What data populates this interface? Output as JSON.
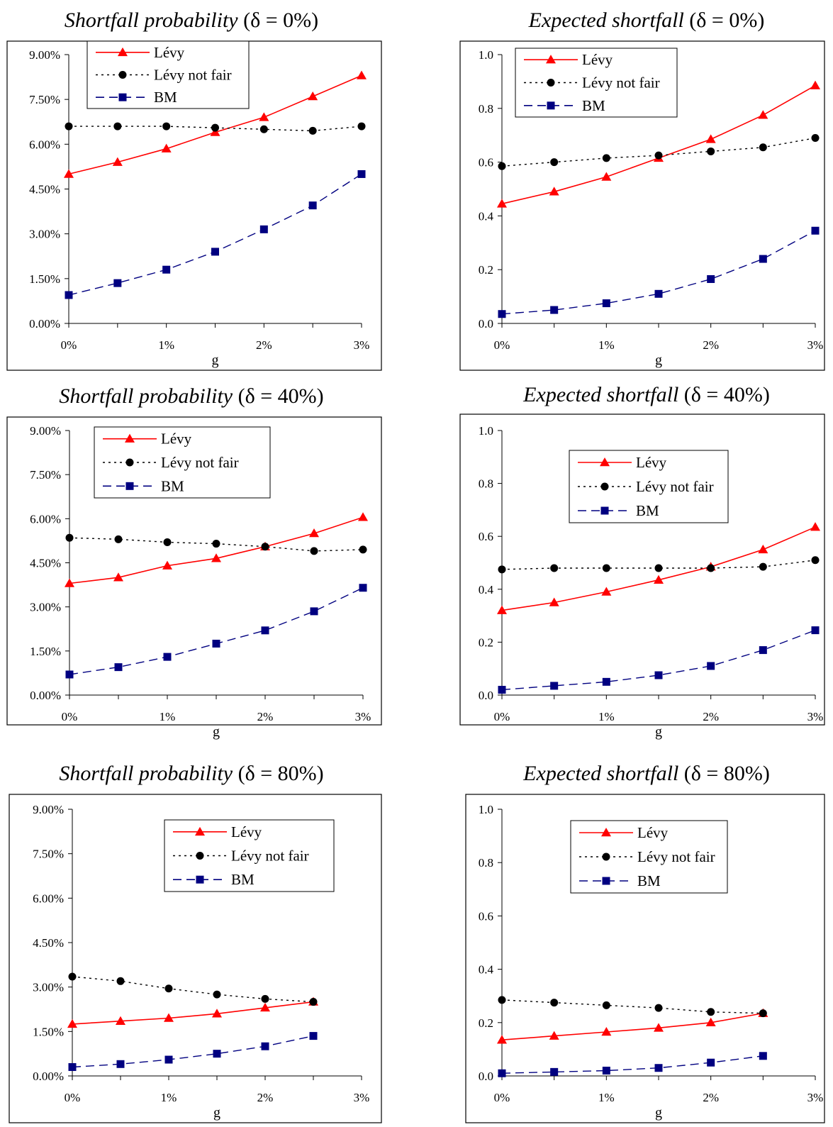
{
  "figure": {
    "chart_data": [
      {
        "type": "line",
        "title": "Shortfall probability (δ = 0%)",
        "title_main": "Shortfall probability",
        "title_paren": "(δ = 0%)",
        "xlabel": "g",
        "ylabel": "",
        "x": [
          0.0,
          0.5,
          1.0,
          1.5,
          2.0,
          2.5,
          3.0
        ],
        "xticks": [
          0,
          1,
          2,
          3
        ],
        "xtick_labels": [
          "0%",
          "1%",
          "2%",
          "3%"
        ],
        "xlim": [
          0,
          3
        ],
        "yticks": [
          0,
          1.5,
          3,
          4.5,
          6,
          7.5,
          9
        ],
        "ytick_labels": [
          "0.00%",
          "1.50%",
          "3.00%",
          "4.50%",
          "6.00%",
          "7.50%",
          "9.00%"
        ],
        "ylim": [
          0,
          9
        ],
        "grid": false,
        "legend_position": "top-right",
        "series": [
          {
            "name": "Lévy",
            "values": [
              5.0,
              5.4,
              5.85,
              6.4,
              6.9,
              7.6,
              8.3
            ]
          },
          {
            "name": "Lévy not fair",
            "values": [
              6.6,
              6.6,
              6.6,
              6.55,
              6.5,
              6.45,
              6.6
            ]
          },
          {
            "name": "BM",
            "values": [
              0.95,
              1.35,
              1.8,
              2.4,
              3.15,
              3.95,
              5.0
            ]
          }
        ]
      },
      {
        "type": "line",
        "title": "Expected shortfall (δ = 0%)",
        "title_main": "Expected shortfall",
        "title_paren": "(δ = 0%)",
        "xlabel": "g",
        "ylabel": "",
        "x": [
          0.0,
          0.5,
          1.0,
          1.5,
          2.0,
          2.5,
          3.0
        ],
        "xticks": [
          0,
          1,
          2,
          3
        ],
        "xtick_labels": [
          "0%",
          "1%",
          "2%",
          "3%"
        ],
        "xlim": [
          0,
          3
        ],
        "yticks": [
          0,
          0.2,
          0.4,
          0.6,
          0.8,
          1.0
        ],
        "ytick_labels": [
          "0.0",
          "0.2",
          "0.4",
          "0.6",
          "0.8",
          "1.0"
        ],
        "ylim": [
          0,
          1.0
        ],
        "grid": false,
        "legend_position": "top-left",
        "series": [
          {
            "name": "Lévy",
            "values": [
              0.445,
              0.49,
              0.545,
              0.615,
              0.685,
              0.775,
              0.885
            ]
          },
          {
            "name": "Lévy not fair",
            "values": [
              0.585,
              0.6,
              0.615,
              0.625,
              0.64,
              0.655,
              0.69
            ]
          },
          {
            "name": "BM",
            "values": [
              0.035,
              0.05,
              0.075,
              0.11,
              0.165,
              0.24,
              0.345
            ]
          }
        ]
      },
      {
        "type": "line",
        "title": "Shortfall probability (δ = 40%)",
        "title_main": "Shortfall probability",
        "title_paren": "(δ = 40%)",
        "xlabel": "g",
        "ylabel": "",
        "x": [
          0.0,
          0.5,
          1.0,
          1.5,
          2.0,
          2.5,
          3.0
        ],
        "xticks": [
          0,
          1,
          2,
          3
        ],
        "xtick_labels": [
          "0%",
          "1%",
          "2%",
          "3%"
        ],
        "xlim": [
          0,
          3
        ],
        "yticks": [
          0,
          1.5,
          3,
          4.5,
          6,
          7.5,
          9
        ],
        "ytick_labels": [
          "0.00%",
          "1.50%",
          "3.00%",
          "4.50%",
          "6.00%",
          "7.50%",
          "9.00%"
        ],
        "ylim": [
          0,
          9
        ],
        "grid": false,
        "legend_position": "top",
        "series": [
          {
            "name": "Lévy",
            "values": [
              3.8,
              4.0,
              4.4,
              4.65,
              5.05,
              5.5,
              6.05
            ]
          },
          {
            "name": "Lévy not fair",
            "values": [
              5.35,
              5.3,
              5.2,
              5.15,
              5.05,
              4.9,
              4.95
            ]
          },
          {
            "name": "BM",
            "values": [
              0.7,
              0.95,
              1.3,
              1.75,
              2.2,
              2.85,
              3.65
            ]
          }
        ]
      },
      {
        "type": "line",
        "title": "Expected shortfall (δ = 40%)",
        "title_main": "Expected shortfall",
        "title_paren": "(δ = 40%)",
        "xlabel": "g",
        "ylabel": "",
        "x": [
          0.0,
          0.5,
          1.0,
          1.5,
          2.0,
          2.5,
          3.0
        ],
        "xticks": [
          0,
          1,
          2,
          3
        ],
        "xtick_labels": [
          "0%",
          "1%",
          "2%",
          "3%"
        ],
        "xlim": [
          0,
          3
        ],
        "yticks": [
          0,
          0.2,
          0.4,
          0.6,
          0.8,
          1.0
        ],
        "ytick_labels": [
          "0.0",
          "0.2",
          "0.4",
          "0.6",
          "0.8",
          "1.0"
        ],
        "ylim": [
          0,
          1.0
        ],
        "grid": false,
        "legend_position": "top-center",
        "series": [
          {
            "name": "Lévy",
            "values": [
              0.32,
              0.35,
              0.39,
              0.435,
              0.485,
              0.55,
              0.635
            ]
          },
          {
            "name": "Lévy not fair",
            "values": [
              0.475,
              0.48,
              0.48,
              0.48,
              0.48,
              0.485,
              0.51
            ]
          },
          {
            "name": "BM",
            "values": [
              0.02,
              0.035,
              0.05,
              0.075,
              0.11,
              0.17,
              0.245
            ]
          }
        ]
      },
      {
        "type": "line",
        "title": "Shortfall probability (δ = 80%)",
        "title_main": "Shortfall probability",
        "title_paren": "(δ = 80%)",
        "xlabel": "g",
        "ylabel": "",
        "x": [
          0.0,
          0.5,
          1.0,
          1.5,
          2.0,
          2.5
        ],
        "xticks": [
          0,
          1,
          2,
          3
        ],
        "xtick_labels": [
          "0%",
          "1%",
          "2%",
          "3%"
        ],
        "xlim": [
          0,
          3
        ],
        "yticks": [
          0,
          1.5,
          3,
          4.5,
          6,
          7.5,
          9
        ],
        "ytick_labels": [
          "0.00%",
          "1.50%",
          "3.00%",
          "4.50%",
          "6.00%",
          "7.50%",
          "9.00%"
        ],
        "ylim": [
          0,
          9
        ],
        "grid": false,
        "legend_position": "top-right",
        "series": [
          {
            "name": "Lévy",
            "values": [
              1.75,
              1.85,
              1.95,
              2.1,
              2.3,
              2.5
            ]
          },
          {
            "name": "Lévy not fair",
            "values": [
              3.35,
              3.2,
              2.95,
              2.75,
              2.6,
              2.5
            ]
          },
          {
            "name": "BM",
            "values": [
              0.3,
              0.4,
              0.55,
              0.75,
              1.0,
              1.35
            ]
          }
        ]
      },
      {
        "type": "line",
        "title": "Expected shortfall (δ = 80%)",
        "title_main": "Expected shortfall",
        "title_paren": "(δ = 80%)",
        "xlabel": "g",
        "ylabel": "",
        "x": [
          0.0,
          0.5,
          1.0,
          1.5,
          2.0,
          2.5
        ],
        "xticks": [
          0,
          1,
          2,
          3
        ],
        "xtick_labels": [
          "0%",
          "1%",
          "2%",
          "3%"
        ],
        "xlim": [
          0,
          3
        ],
        "yticks": [
          0,
          0.2,
          0.4,
          0.6,
          0.8,
          1.0
        ],
        "ytick_labels": [
          "0.0",
          "0.2",
          "0.4",
          "0.6",
          "0.8",
          "1.0"
        ],
        "ylim": [
          0,
          1.0
        ],
        "grid": false,
        "legend_position": "top-center",
        "series": [
          {
            "name": "Lévy",
            "values": [
              0.135,
              0.15,
              0.165,
              0.18,
              0.2,
              0.235
            ]
          },
          {
            "name": "Lévy not fair",
            "values": [
              0.285,
              0.275,
              0.265,
              0.255,
              0.24,
              0.235
            ]
          },
          {
            "name": "BM",
            "values": [
              0.01,
              0.015,
              0.02,
              0.03,
              0.05,
              0.075
            ]
          }
        ]
      }
    ],
    "series_styles": [
      {
        "color": "#ff0000",
        "dash": "none",
        "marker": "triangle"
      },
      {
        "color": "#000000",
        "dash": "dotted",
        "marker": "circle"
      },
      {
        "color": "#000080",
        "dash": "dashed",
        "marker": "square"
      }
    ]
  }
}
